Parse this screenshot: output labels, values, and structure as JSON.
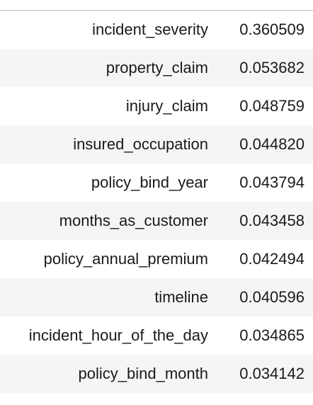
{
  "table": {
    "rows": [
      {
        "feature": "incident_severity",
        "value": "0.360509"
      },
      {
        "feature": "property_claim",
        "value": "0.053682"
      },
      {
        "feature": "injury_claim",
        "value": "0.048759"
      },
      {
        "feature": "insured_occupation",
        "value": "0.044820"
      },
      {
        "feature": "policy_bind_year",
        "value": "0.043794"
      },
      {
        "feature": "months_as_customer",
        "value": "0.043458"
      },
      {
        "feature": "policy_annual_premium",
        "value": "0.042494"
      },
      {
        "feature": "timeline",
        "value": "0.040596"
      },
      {
        "feature": "incident_hour_of_the_day",
        "value": "0.034865"
      },
      {
        "feature": "policy_bind_month",
        "value": "0.034142"
      }
    ]
  }
}
